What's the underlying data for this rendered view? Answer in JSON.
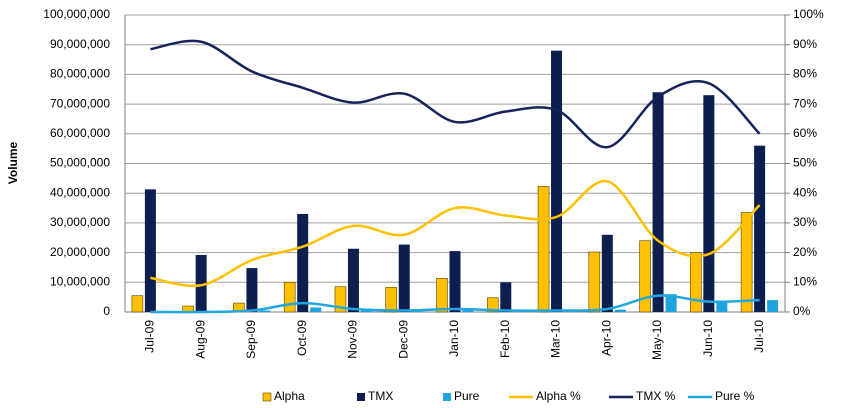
{
  "chart_data": {
    "type": "bar-line",
    "y_label": "Volume",
    "categories": [
      "Jul-09",
      "Aug-09",
      "Sep-09",
      "Oct-09",
      "Nov-09",
      "Dec-09",
      "Jan-10",
      "Feb-10",
      "Mar-10",
      "Apr-10",
      "May-10",
      "Jun-10",
      "Jul-10"
    ],
    "series": [
      {
        "name": "Alpha",
        "type": "bar",
        "color": "#FFC000",
        "values": [
          5500000,
          2000000,
          3000000,
          10000000,
          8500000,
          8300000,
          11300000,
          4800000,
          42300000,
          20200000,
          24000000,
          20000000,
          33500000
        ]
      },
      {
        "name": "TMX",
        "type": "bar",
        "color": "#0D1F4F",
        "values": [
          41300000,
          19200000,
          14800000,
          33000000,
          21300000,
          22700000,
          20500000,
          10000000,
          88000000,
          26000000,
          74000000,
          73000000,
          56000000
        ]
      },
      {
        "name": "Pure",
        "type": "bar",
        "color": "#1FA3DE",
        "values": [
          200000,
          200000,
          500000,
          1500000,
          500000,
          400000,
          600000,
          300000,
          500000,
          800000,
          6000000,
          3800000,
          4000000
        ]
      },
      {
        "name": "Alpha %",
        "type": "line",
        "axis": "y2",
        "color": "#FFC000",
        "values": [
          11.5,
          9,
          17.5,
          22,
          29,
          26,
          35,
          32.5,
          32,
          44,
          24,
          19.5,
          36
        ]
      },
      {
        "name": "TMX %",
        "type": "line",
        "axis": "y2",
        "color": "#16235C",
        "values": [
          88.5,
          91,
          81,
          75.5,
          70.5,
          73.5,
          64,
          67.5,
          68,
          55.5,
          72.5,
          77,
          60
        ]
      },
      {
        "name": "Pure %",
        "type": "line",
        "axis": "y2",
        "color": "#21A6E0",
        "values": [
          0,
          0,
          0.5,
          3,
          1,
          0.5,
          1,
          0.5,
          0.5,
          1,
          5.5,
          3.5,
          4
        ]
      }
    ],
    "ylim": [
      0,
      100000000
    ],
    "yticks": [
      0,
      {
        "value": 10000000,
        "label": "10,000,000"
      },
      {
        "value": 20000000,
        "label": "20,000,000"
      },
      {
        "value": 30000000,
        "label": "30,000,000"
      },
      {
        "value": 40000000,
        "label": "40,000,000"
      },
      {
        "value": 50000000,
        "label": "50,000,000"
      },
      {
        "value": 60000000,
        "label": "60,000,000"
      },
      {
        "value": 70000000,
        "label": "70,000,000"
      },
      {
        "value": 80000000,
        "label": "80,000,000"
      },
      {
        "value": 90000000,
        "label": "90,000,000"
      },
      {
        "value": 100000000,
        "label": "100,000,000"
      }
    ],
    "y2lim": [
      0,
      100
    ],
    "y2ticks": [
      {
        "value": 0,
        "label": "0%"
      },
      {
        "value": 10,
        "label": "10%"
      },
      {
        "value": 20,
        "label": "20%"
      },
      {
        "value": 30,
        "label": "30%"
      },
      {
        "value": 40,
        "label": "40%"
      },
      {
        "value": 50,
        "label": "50%"
      },
      {
        "value": 60,
        "label": "60%"
      },
      {
        "value": 70,
        "label": "70%"
      },
      {
        "value": 80,
        "label": "80%"
      },
      {
        "value": 90,
        "label": "90%"
      },
      {
        "value": 100,
        "label": "100%"
      }
    ],
    "grid": true,
    "legend": "bottom"
  }
}
